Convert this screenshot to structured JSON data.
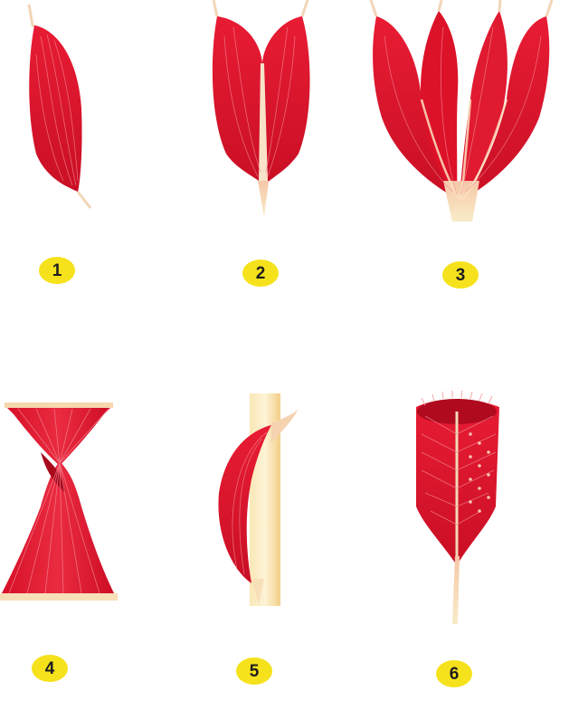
{
  "colors": {
    "muscle_red": "#e0102a",
    "muscle_dark": "#b20820",
    "tendon": "#f8ecc8",
    "badge_yellow": "#f5e21c",
    "bone": "#f7dca0"
  },
  "muscles": [
    {
      "number": "1",
      "shape": "fusiform-single-belly"
    },
    {
      "number": "2",
      "shape": "bipennate-two-heads"
    },
    {
      "number": "3",
      "shape": "multi-head"
    },
    {
      "number": "4",
      "shape": "twisted-spiral"
    },
    {
      "number": "5",
      "shape": "curved-over-bone"
    },
    {
      "number": "6",
      "shape": "multipennate-bristled"
    }
  ]
}
